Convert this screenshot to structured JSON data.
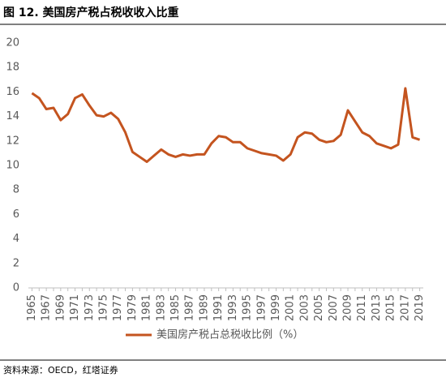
{
  "chart_data": {
    "type": "line",
    "title": "图 12. 美国房产税占税收收入比重",
    "source": "资料来源：OECD，红塔证券",
    "categories": [
      "1965",
      null,
      "1967",
      null,
      "1969",
      null,
      "1971",
      null,
      "1973",
      null,
      "1975",
      null,
      "1977",
      null,
      "1979",
      null,
      "1981",
      null,
      "1983",
      null,
      "1985",
      null,
      "1987",
      null,
      "1989",
      null,
      "1991",
      null,
      "1993",
      null,
      "1995",
      null,
      "1997",
      null,
      "1999",
      null,
      "2001",
      null,
      "2003",
      null,
      "2005",
      null,
      "2007",
      null,
      "2009",
      null,
      "2011",
      null,
      "2013",
      null,
      "2015",
      null,
      "2017",
      null,
      "2019"
    ],
    "series": [
      {
        "name": "美国房产税占总税收比例（%）",
        "color": "#c4541f",
        "values": [
          15.9,
          15.5,
          14.6,
          14.7,
          13.7,
          14.2,
          15.5,
          15.8,
          14.9,
          14.1,
          14.0,
          14.3,
          13.8,
          12.7,
          11.1,
          10.7,
          10.3,
          10.8,
          11.3,
          10.9,
          10.7,
          10.9,
          10.8,
          10.9,
          10.9,
          11.8,
          12.4,
          12.3,
          11.9,
          11.9,
          11.4,
          11.2,
          11.0,
          10.9,
          10.8,
          10.4,
          10.9,
          12.3,
          12.7,
          12.6,
          12.1,
          11.9,
          12.0,
          12.5,
          14.5,
          13.6,
          12.7,
          12.4,
          11.8,
          11.6,
          11.4,
          11.7,
          16.3,
          12.3,
          12.1
        ]
      }
    ],
    "ylim": [
      0,
      20
    ],
    "yticks": [
      0,
      2,
      4,
      6,
      8,
      10,
      12,
      14,
      16,
      18,
      20
    ],
    "grid": false,
    "legend": "bottom"
  }
}
